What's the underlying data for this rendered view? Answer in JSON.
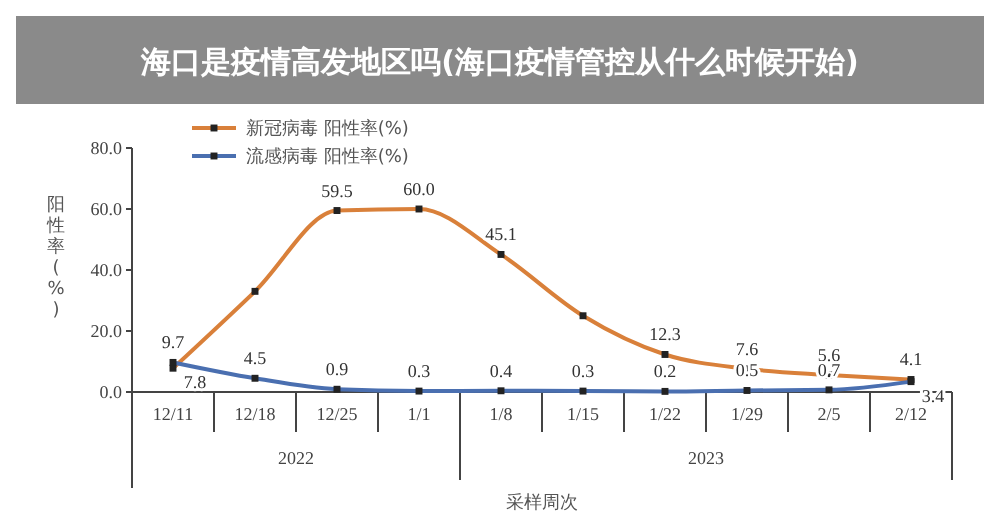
{
  "chart_data": {
    "type": "line",
    "title": "海口是疫情高发地区吗(海口疫情管控从什么时候开始)",
    "ylabel": "阳性率(%)",
    "xlabel": "采样周次",
    "categories": [
      "12/11",
      "12/18",
      "12/25",
      "1/1",
      "1/8",
      "1/15",
      "1/22",
      "1/29",
      "2/5",
      "2/12"
    ],
    "series": [
      {
        "name": "新冠病毒 阳性率(%)",
        "color": "#d9803a",
        "values": [
          7.8,
          33,
          59.5,
          60.0,
          45.1,
          25,
          12.3,
          7.6,
          5.6,
          4.1
        ],
        "value_labels": [
          "7.8",
          null,
          "59.5",
          "60.0",
          "45.1",
          null,
          "12.3",
          "7.6",
          "5.6",
          "4.1"
        ]
      },
      {
        "name": "流感病毒 阳性率(%)",
        "color": "#4a6fb0",
        "values": [
          9.7,
          4.5,
          0.9,
          0.3,
          0.4,
          0.3,
          0.2,
          0.5,
          0.7,
          3.4
        ],
        "value_labels": [
          "9.7",
          "4.5",
          "0.9",
          "0.3",
          "0.4",
          "0.3",
          "0.2",
          "0.5",
          "0.7",
          "3.4"
        ]
      }
    ],
    "ylim": [
      0,
      80
    ],
    "yticks": [
      {
        "value": 0,
        "label": "0.0"
      },
      {
        "value": 20,
        "label": "20.0"
      },
      {
        "value": 40,
        "label": "40.0"
      },
      {
        "value": 60,
        "label": "60.0"
      },
      {
        "value": 80,
        "label": "80.0"
      }
    ],
    "annotations": [
      "2022",
      "2023"
    ],
    "marker": "square",
    "legend": "top left",
    "grid": false
  }
}
